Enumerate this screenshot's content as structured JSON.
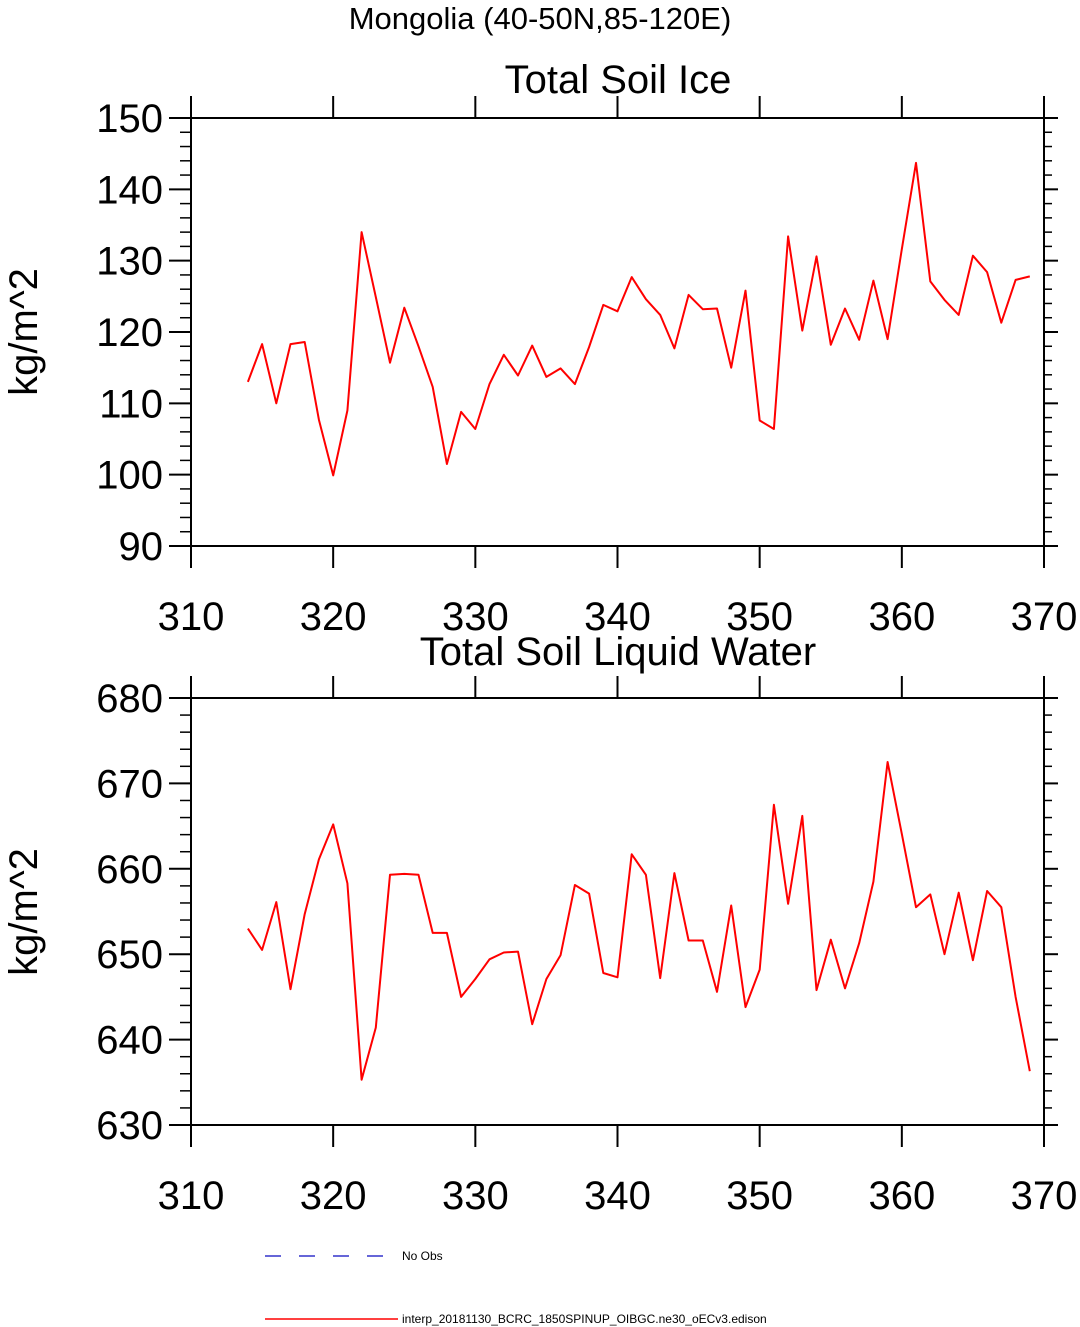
{
  "figure": {
    "suptitle": "Mongolia (40-50N,85-120E)"
  },
  "chart_data": [
    {
      "type": "line",
      "title": "Total Soil Ice",
      "xlabel": "",
      "ylabel": "kg/m^2",
      "xlim": [
        310,
        370
      ],
      "ylim": [
        90,
        150
      ],
      "xticks": [
        310,
        320,
        330,
        340,
        350,
        360,
        370
      ],
      "yticks": [
        90,
        100,
        110,
        120,
        130,
        140,
        150
      ],
      "series": [
        {
          "name": "interp_20181130_BCRC_1850SPINUP_OIBGC.ne30_oECv3.edison",
          "color": "#ff0000",
          "x": [
            314,
            315,
            316,
            317,
            318,
            319,
            320,
            321,
            322,
            323,
            324,
            325,
            326,
            327,
            328,
            329,
            330,
            331,
            332,
            333,
            334,
            335,
            336,
            337,
            338,
            339,
            340,
            341,
            342,
            343,
            344,
            345,
            346,
            347,
            348,
            349,
            350,
            351,
            352,
            353,
            354,
            355,
            356,
            357,
            358,
            359,
            360,
            361,
            362,
            363,
            364,
            365,
            366,
            367,
            368,
            369
          ],
          "values": [
            113.0,
            118.3,
            110.0,
            118.3,
            118.6,
            107.7,
            99.9,
            109.0,
            134.0,
            124.9,
            115.7,
            123.4,
            118.0,
            112.3,
            101.5,
            108.8,
            106.4,
            112.7,
            116.8,
            113.9,
            118.1,
            113.7,
            114.9,
            112.7,
            117.9,
            123.8,
            122.9,
            127.7,
            124.6,
            122.4,
            117.7,
            125.2,
            123.2,
            123.3,
            115.0,
            125.8,
            107.6,
            106.4,
            133.4,
            120.2,
            130.6,
            118.2,
            123.3,
            118.9,
            127.2,
            119.0,
            131.6,
            143.7,
            127.1,
            124.5,
            122.4,
            130.7,
            128.4,
            121.3,
            127.3,
            127.8
          ]
        }
      ]
    },
    {
      "type": "line",
      "title": "Total Soil Liquid Water",
      "xlabel": "",
      "ylabel": "kg/m^2",
      "xlim": [
        310,
        370
      ],
      "ylim": [
        630,
        680
      ],
      "xticks": [
        310,
        320,
        330,
        340,
        350,
        360,
        370
      ],
      "yticks": [
        630,
        640,
        650,
        660,
        670,
        680
      ],
      "series": [
        {
          "name": "interp_20181130_BCRC_1850SPINUP_OIBGC.ne30_oECv3.edison",
          "color": "#ff0000",
          "x": [
            314,
            315,
            316,
            317,
            318,
            319,
            320,
            321,
            322,
            323,
            324,
            325,
            326,
            327,
            328,
            329,
            330,
            331,
            332,
            333,
            334,
            335,
            336,
            337,
            338,
            339,
            340,
            341,
            342,
            343,
            344,
            345,
            346,
            347,
            348,
            349,
            350,
            351,
            352,
            353,
            354,
            355,
            356,
            357,
            358,
            359,
            360,
            361,
            362,
            363,
            364,
            365,
            366,
            367,
            368,
            369
          ],
          "values": [
            653.0,
            650.5,
            656.1,
            645.9,
            654.7,
            661.1,
            665.2,
            658.3,
            635.3,
            641.4,
            659.3,
            659.4,
            659.3,
            652.5,
            652.5,
            645.0,
            647.1,
            649.4,
            650.2,
            650.3,
            641.8,
            647.1,
            649.9,
            658.1,
            657.1,
            647.8,
            647.3,
            661.7,
            659.3,
            647.2,
            659.5,
            651.6,
            651.6,
            645.6,
            655.7,
            643.8,
            648.2,
            667.5,
            655.9,
            666.2,
            645.8,
            651.7,
            646.0,
            651.3,
            658.5,
            672.5,
            664.1,
            655.5,
            657.0,
            650.0,
            657.2,
            649.3,
            657.4,
            655.5,
            645.0,
            636.3
          ]
        }
      ]
    }
  ],
  "legend": {
    "placement": "bottom",
    "items": [
      {
        "label": "No Obs",
        "style": "dashed",
        "color": "#3333cc"
      },
      {
        "label": "interp_20181130_BCRC_1850SPINUP_OIBGC.ne30_oECv3.edison",
        "style": "solid",
        "color": "#ff0000"
      }
    ]
  }
}
